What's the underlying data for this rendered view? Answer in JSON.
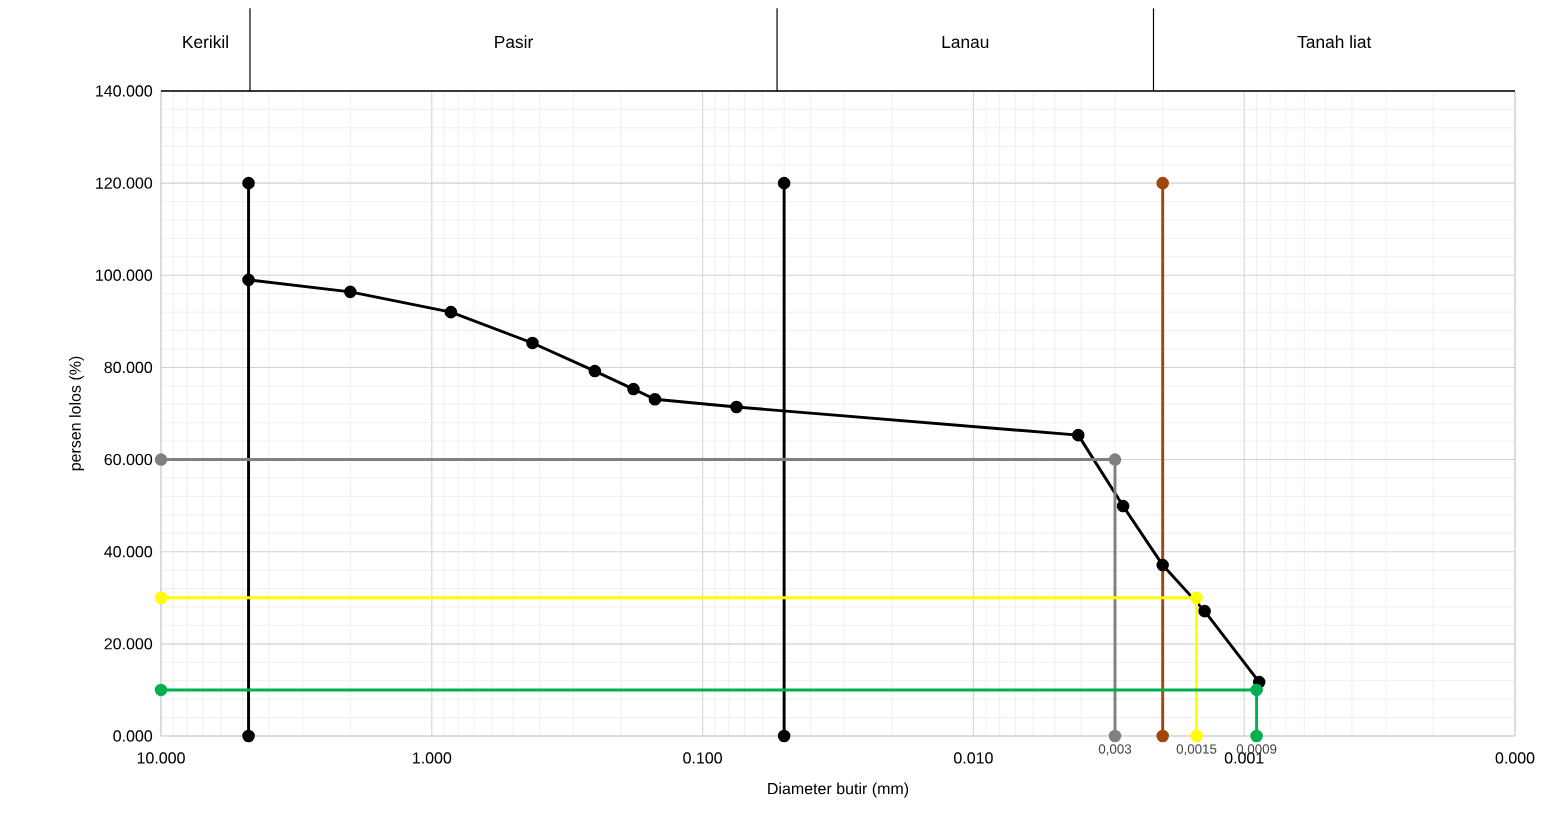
{
  "chart_data": {
    "type": "line",
    "xlabel": "Diameter butir (mm)",
    "ylabel": "persen lolos (%)",
    "log": "x",
    "grid": true,
    "marker": "circle",
    "line_style": "solid",
    "xlim": [
      10,
      0.0001
    ],
    "ylim": [
      0,
      140
    ],
    "xticks": [
      {
        "value": 10,
        "label": "10.000"
      },
      {
        "value": 1,
        "label": "1.000"
      },
      {
        "value": 0.1,
        "label": "0.100"
      },
      {
        "value": 0.01,
        "label": "0.010"
      },
      {
        "value": 0.001,
        "label": "0.001"
      },
      {
        "value": 0.0001,
        "label": "0.000"
      }
    ],
    "yticks": [
      {
        "value": 0,
        "label": "0.000"
      },
      {
        "value": 20,
        "label": "20.000"
      },
      {
        "value": 40,
        "label": "40.000"
      },
      {
        "value": 60,
        "label": "60.000"
      },
      {
        "value": 80,
        "label": "80.000"
      },
      {
        "value": 100,
        "label": "100.000"
      },
      {
        "value": 120,
        "label": "120.000"
      },
      {
        "value": 140,
        "label": "140.000"
      }
    ],
    "series": [
      {
        "color": "#000000",
        "x": [
          4.75,
          2.0,
          0.85,
          0.425,
          0.25,
          0.18,
          0.15,
          0.075,
          0.0041,
          0.003,
          0.0028,
          0.002,
          0.0014,
          0.00088
        ],
        "values": [
          99.0,
          96.4,
          92.0,
          85.3,
          79.2,
          75.3,
          73.1,
          71.4,
          65.3,
          null,
          49.9,
          37.1,
          27.1,
          11.7
        ]
      },
      {
        "color": "#000000",
        "x": [
          4.75,
          4.75
        ],
        "values": [
          0,
          120
        ]
      },
      {
        "color": "#000000",
        "x": [
          0.05,
          0.05
        ],
        "values": [
          0,
          120
        ]
      },
      {
        "color": "#9e480e",
        "x": [
          0.002,
          0.002
        ],
        "values": [
          0,
          120
        ]
      },
      {
        "color": "#808080",
        "x": [
          10,
          0.003,
          0.003
        ],
        "values": [
          60,
          60,
          0
        ]
      },
      {
        "color": "#ffff00",
        "x": [
          10,
          0.0015,
          0.0015
        ],
        "values": [
          30,
          30,
          0
        ]
      },
      {
        "color": "#00b050",
        "x": [
          10,
          0.0009,
          0.0009
        ],
        "values": [
          10,
          10,
          0
        ]
      }
    ],
    "annotations": [
      "Kerikil",
      "Pasir",
      "Lanau",
      "Tanah liat",
      {
        "text": "0,003",
        "x": 0.003,
        "y": 0
      },
      {
        "text": "0,0015",
        "x": 0.0015,
        "y": 0
      },
      {
        "text": "0,0009",
        "x": 0.0009,
        "y": 0
      }
    ]
  }
}
